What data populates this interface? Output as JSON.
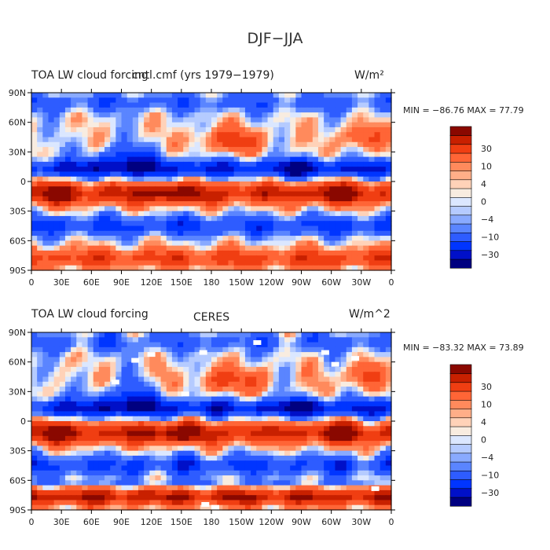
{
  "figure": {
    "title": "DJF−JJA"
  },
  "colorbar": {
    "colors": [
      "#000080",
      "#0010c8",
      "#0035ff",
      "#2e5cff",
      "#5a85ff",
      "#89aaff",
      "#b5cbff",
      "#dbe7ff",
      "#f8ece0",
      "#ffd2b8",
      "#ffae88",
      "#ff8a5c",
      "#ff6536",
      "#f03e12",
      "#c82000",
      "#8a0800"
    ],
    "tick_labels": [
      "30",
      "10",
      "4",
      "0",
      "−4",
      "−10",
      "−30"
    ]
  },
  "chart_data": [
    {
      "type": "heatmap",
      "title": "TOA LW cloud forcing",
      "subtitle": "cntl.cmf (yrs 1979−1979)",
      "units": "W/m²",
      "min_max_text": "MIN = −86.76 MAX =  77.79",
      "min": -86.76,
      "max": 77.79,
      "xlim": [
        0,
        360
      ],
      "ylim": [
        -90,
        90
      ],
      "x_tick_labels": [
        "0",
        "30E",
        "60E",
        "90E",
        "120E",
        "150E",
        "180",
        "150W",
        "120W",
        "90W",
        "60W",
        "30W",
        "0"
      ],
      "y_tick_labels": [
        "90N",
        "60N",
        "30N",
        "0",
        "30S",
        "60S",
        "90S"
      ],
      "legend": "right",
      "levels": [
        -40,
        -30,
        -20,
        -10,
        -6,
        -4,
        -2,
        0,
        2,
        4,
        6,
        10,
        20,
        30,
        40
      ]
    },
    {
      "type": "heatmap",
      "title": "TOA LW cloud forcing",
      "subtitle": "CERES",
      "units": "W/m^2",
      "min_max_text": "MIN = −83.32 MAX =  73.89",
      "min": -83.32,
      "max": 73.89,
      "xlim": [
        0,
        360
      ],
      "ylim": [
        -90,
        90
      ],
      "x_tick_labels": [
        "0",
        "30E",
        "60E",
        "90E",
        "120E",
        "150E",
        "180",
        "150W",
        "120W",
        "90W",
        "60W",
        "30W",
        "0"
      ],
      "y_tick_labels": [
        "90N",
        "60N",
        "30N",
        "0",
        "30S",
        "60S",
        "90S"
      ],
      "legend": "right",
      "levels": [
        -40,
        -30,
        -20,
        -10,
        -6,
        -4,
        -2,
        0,
        2,
        4,
        6,
        10,
        20,
        30,
        40
      ]
    }
  ]
}
